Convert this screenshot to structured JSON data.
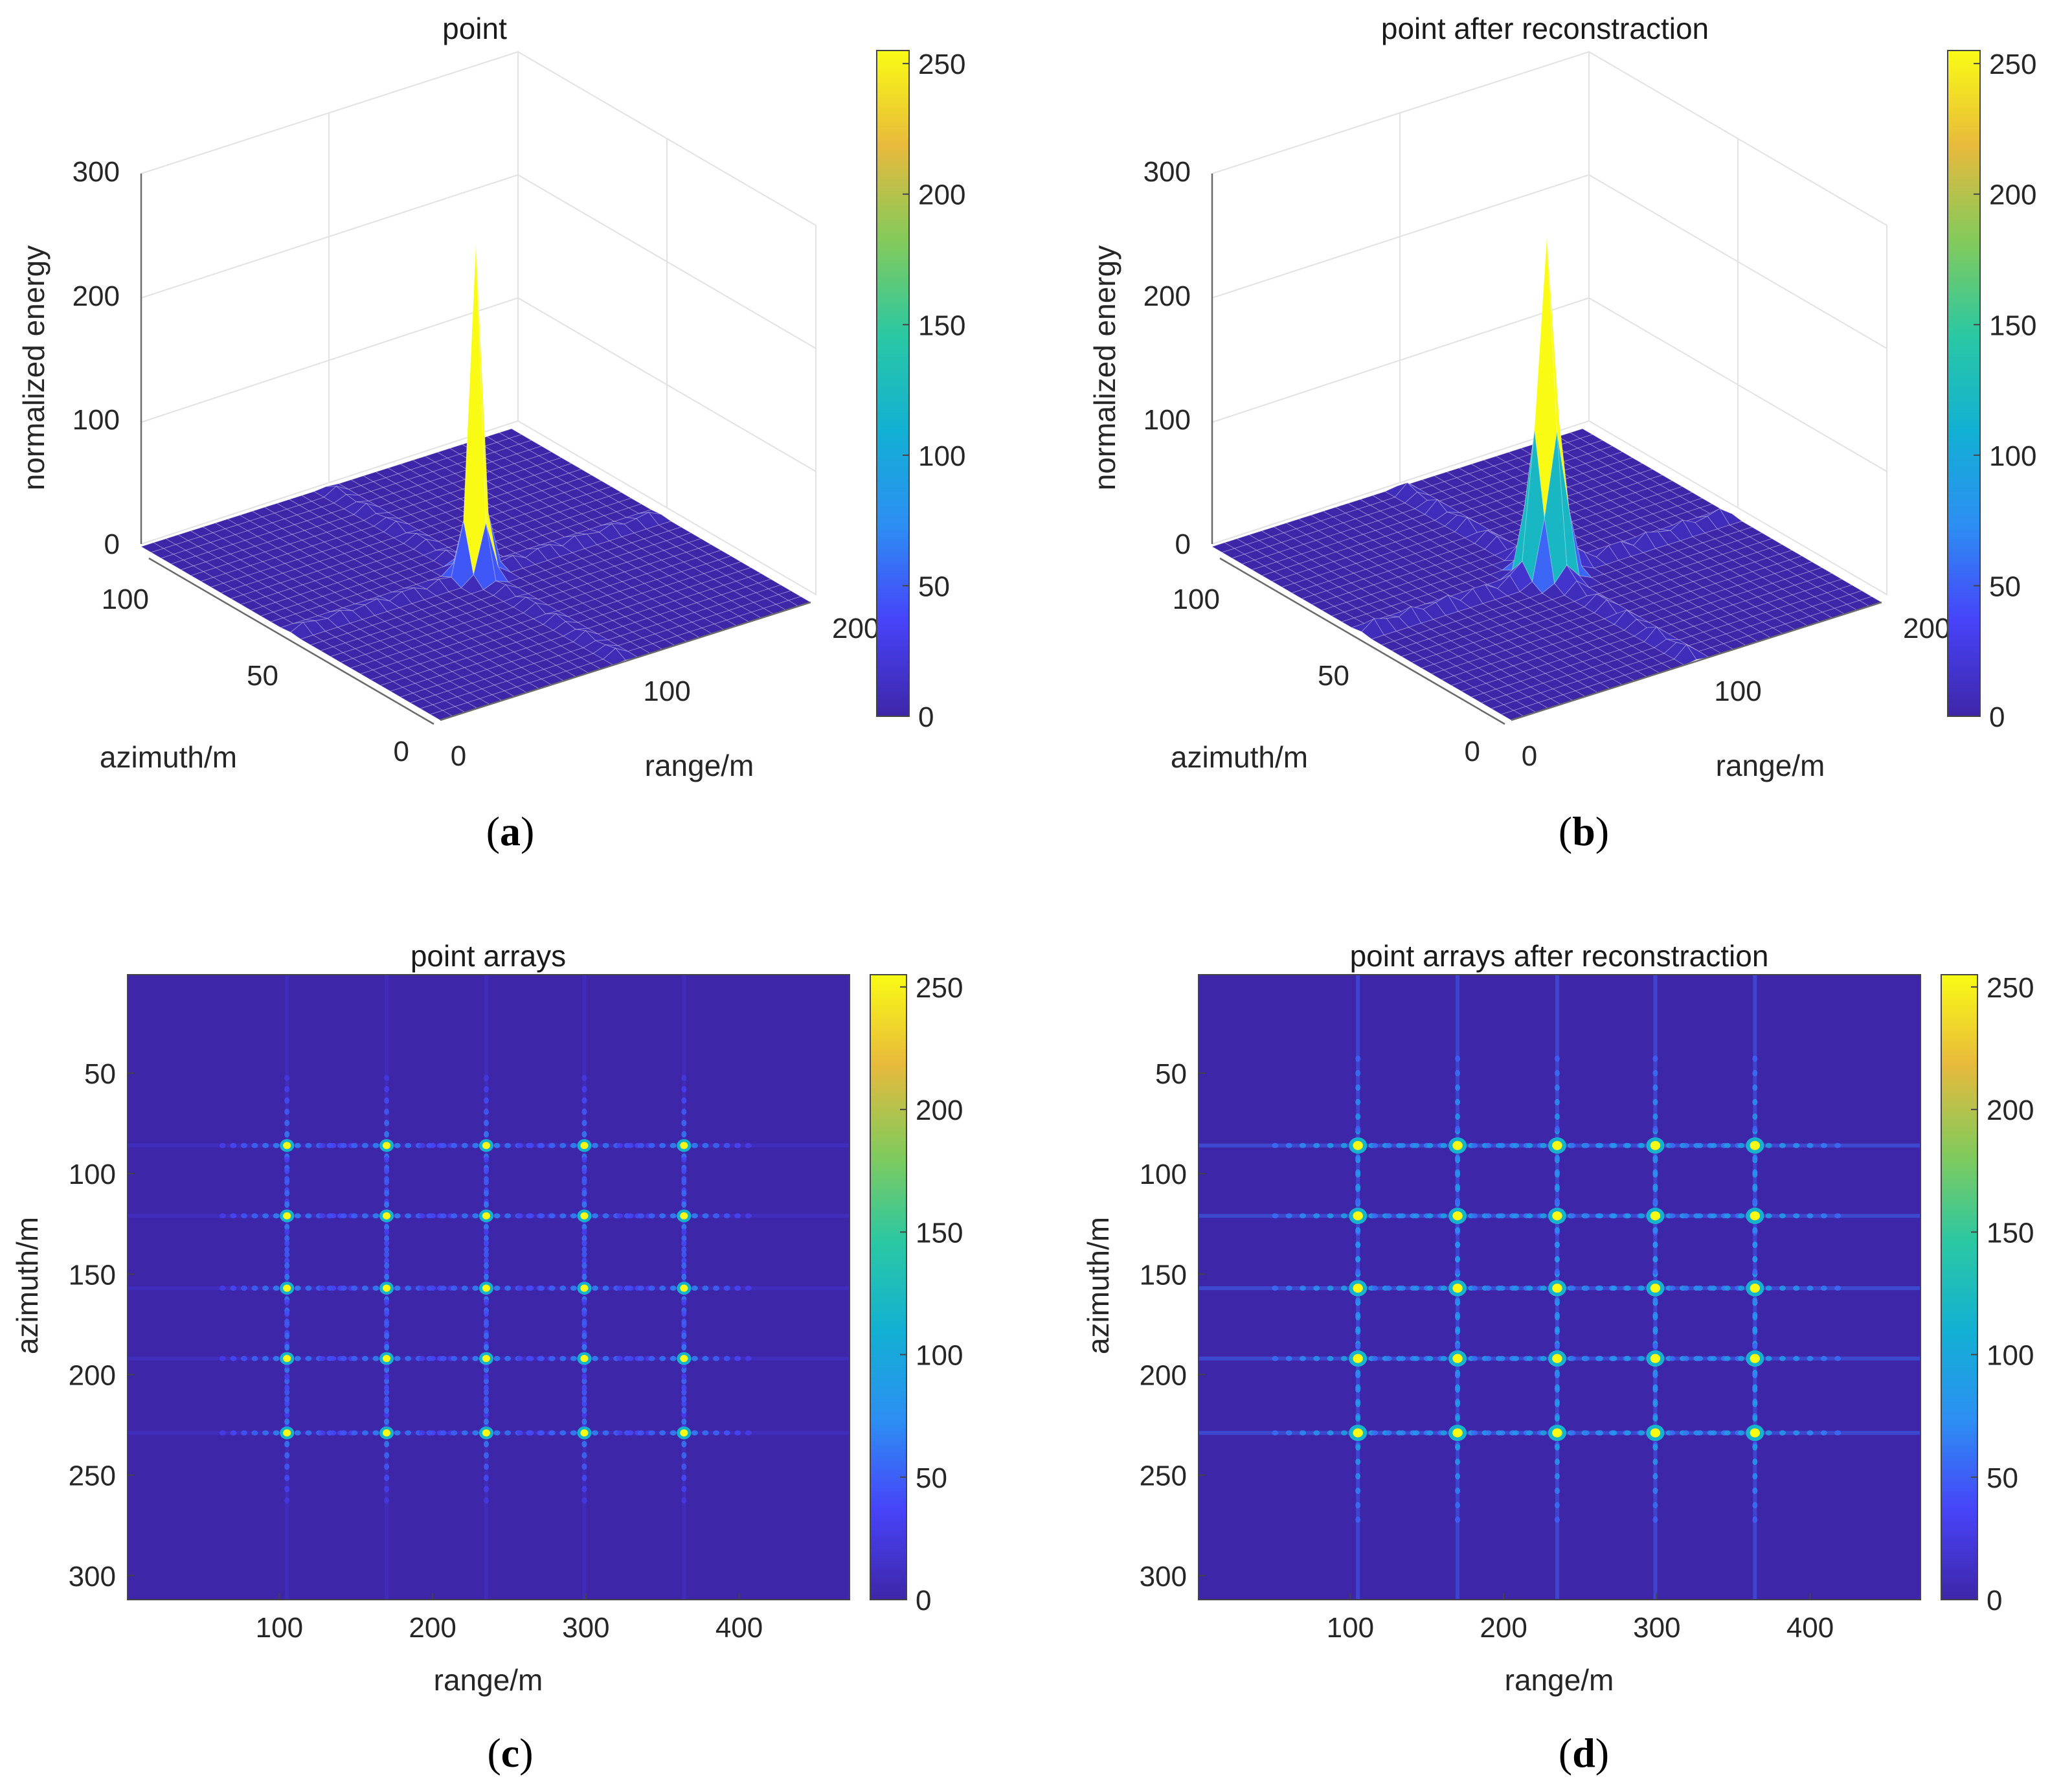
{
  "colormap": {
    "name": "parula",
    "stops": [
      "#3e26a8",
      "#4743f8",
      "#2d8ef3",
      "#12b0d3",
      "#2ac8a3",
      "#83ca5b",
      "#e8ba3c",
      "#f9fb15"
    ],
    "background_hex": "#3e26a8"
  },
  "captions": [
    {
      "open": "(",
      "letter": "a",
      "close": ")"
    },
    {
      "open": "(",
      "letter": "b",
      "close": ")"
    },
    {
      "open": "(",
      "letter": "c",
      "close": ")"
    },
    {
      "open": "(",
      "letter": "d",
      "close": ")"
    }
  ],
  "chart_data": [
    {
      "type": "surface",
      "title": "point",
      "xlabel": "range/m",
      "ylabel": "azimuth/m",
      "zlabel": "normalized energy",
      "x_ticks": [
        0,
        100,
        200
      ],
      "y_ticks": [
        0,
        50,
        100
      ],
      "z_ticks": [
        0,
        100,
        200,
        300
      ],
      "zlim": [
        0,
        300
      ],
      "peak": {
        "range": 100,
        "azimuth": 50,
        "value": 255
      },
      "colorbar": {
        "min": 0,
        "max": 255,
        "ticks": [
          0,
          50,
          100,
          150,
          200,
          250
        ]
      },
      "grid": true
    },
    {
      "type": "surface",
      "title": "point after reconstraction",
      "xlabel": "range/m",
      "ylabel": "azimuth/m",
      "zlabel": "normalized energy",
      "x_ticks": [
        0,
        100,
        200
      ],
      "y_ticks": [
        0,
        50,
        100
      ],
      "z_ticks": [
        0,
        100,
        200,
        300
      ],
      "zlim": [
        0,
        300
      ],
      "peak": {
        "range": 100,
        "azimuth": 50,
        "value": 255
      },
      "colorbar": {
        "min": 0,
        "max": 255,
        "ticks": [
          0,
          50,
          100,
          150,
          200,
          250
        ]
      },
      "grid": true
    },
    {
      "type": "heatmap",
      "title": "point arrays",
      "xlabel": "range/m",
      "ylabel": "azimuth/m",
      "xlim": [
        1,
        472
      ],
      "ylim": [
        1,
        312
      ],
      "x_ticks": [
        100,
        200,
        300,
        400
      ],
      "y_ticks": [
        50,
        100,
        150,
        200,
        250,
        300
      ],
      "targets_range": [
        105,
        170,
        235,
        299,
        364
      ],
      "targets_azimuth": [
        86,
        121,
        157,
        192,
        229
      ],
      "target_value": 255,
      "colorbar": {
        "min": 0,
        "max": 255,
        "ticks": [
          0,
          50,
          100,
          150,
          200,
          250
        ]
      }
    },
    {
      "type": "heatmap",
      "title": "point arrays after reconstraction",
      "xlabel": "range/m",
      "ylabel": "azimuth/m",
      "xlim": [
        1,
        472
      ],
      "ylim": [
        1,
        312
      ],
      "x_ticks": [
        100,
        200,
        300,
        400
      ],
      "y_ticks": [
        50,
        100,
        150,
        200,
        250,
        300
      ],
      "targets_range": [
        105,
        170,
        235,
        299,
        364
      ],
      "targets_azimuth": [
        86,
        121,
        157,
        192,
        229
      ],
      "target_value": 255,
      "colorbar": {
        "min": 0,
        "max": 255,
        "ticks": [
          0,
          50,
          100,
          150,
          200,
          250
        ]
      }
    }
  ]
}
